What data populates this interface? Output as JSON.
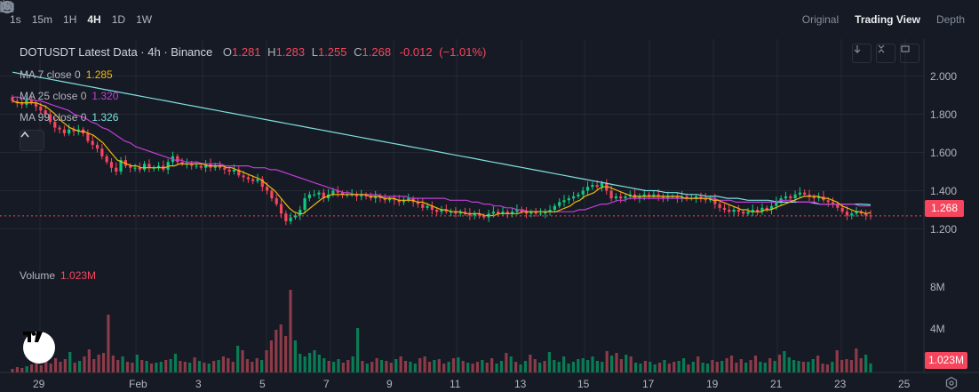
{
  "toolbar": {
    "timeframes": [
      "1s",
      "15m",
      "1H",
      "4H",
      "1D",
      "1W"
    ],
    "active_timeframe": "4H",
    "views": [
      "Original",
      "Trading View",
      "Depth"
    ],
    "active_view": "Trading View"
  },
  "legend": {
    "symbol": "DOTUSDT Latest Data · 4h · Binance",
    "open_label": "O",
    "open": "1.281",
    "high_label": "H",
    "high": "1.283",
    "low_label": "L",
    "low": "1.255",
    "close_label": "C",
    "close": "1.268",
    "change": "-0.012",
    "change_pct": "(−1.01%)"
  },
  "ma": [
    {
      "label": "MA 7 close 0",
      "value": "1.285",
      "color": "#f0b90b"
    },
    {
      "label": "MA 25 close 0",
      "value": "1.320",
      "color": "#c13dd7"
    },
    {
      "label": "MA 99 close 0",
      "value": "1.326",
      "color": "#7ee0e0"
    }
  ],
  "price_axis": {
    "ticks": [
      "2.000",
      "1.800",
      "1.600",
      "1.400",
      "1.200"
    ],
    "last_price": "1.268",
    "last_price_color": "#f6465d"
  },
  "volume": {
    "label": "Volume",
    "value": "1.023M",
    "ticks": [
      "8M",
      "4M"
    ],
    "last_volume": "1.023M"
  },
  "time_axis": {
    "ticks": [
      "29",
      "Feb",
      "3",
      "5",
      "7",
      "9",
      "11",
      "13",
      "15",
      "17",
      "19",
      "21",
      "23",
      "25"
    ]
  },
  "colors": {
    "up": "#0ecb81",
    "down": "#f6465d",
    "background": "#161a25",
    "grid": "#232833"
  },
  "icons": {
    "dropdown": "chevron-down-icon",
    "indicators": "line-chart-icon",
    "candles": "candles-icon",
    "camera": "camera-icon",
    "add": "plus-circle-icon",
    "settings": "hexagon-settings-icon"
  },
  "chart_data": {
    "type": "candlestick",
    "title": "DOTUSDT Latest Data · 4h · Binance",
    "ylim": [
      1.1,
      2.1
    ],
    "closes": [
      1.87,
      1.86,
      1.85,
      1.88,
      1.86,
      1.84,
      1.82,
      1.8,
      1.76,
      1.73,
      1.72,
      1.7,
      1.72,
      1.71,
      1.72,
      1.7,
      1.66,
      1.64,
      1.62,
      1.58,
      1.55,
      1.52,
      1.5,
      1.56,
      1.53,
      1.52,
      1.52,
      1.51,
      1.54,
      1.52,
      1.52,
      1.53,
      1.51,
      1.55,
      1.58,
      1.55,
      1.54,
      1.54,
      1.53,
      1.53,
      1.52,
      1.54,
      1.52,
      1.53,
      1.52,
      1.51,
      1.5,
      1.51,
      1.48,
      1.47,
      1.46,
      1.45,
      1.46,
      1.42,
      1.4,
      1.36,
      1.33,
      1.28,
      1.24,
      1.26,
      1.27,
      1.3,
      1.36,
      1.38,
      1.38,
      1.39,
      1.36,
      1.38,
      1.4,
      1.39,
      1.38,
      1.38,
      1.38,
      1.37,
      1.38,
      1.37,
      1.36,
      1.37,
      1.36,
      1.35,
      1.36,
      1.35,
      1.34,
      1.35,
      1.36,
      1.34,
      1.33,
      1.31,
      1.32,
      1.3,
      1.29,
      1.3,
      1.29,
      1.29,
      1.28,
      1.29,
      1.28,
      1.27,
      1.28,
      1.27,
      1.26,
      1.28,
      1.29,
      1.28,
      1.29,
      1.28,
      1.29,
      1.3,
      1.29,
      1.28,
      1.29,
      1.28,
      1.28,
      1.29,
      1.3,
      1.32,
      1.34,
      1.35,
      1.36,
      1.37,
      1.38,
      1.4,
      1.42,
      1.43,
      1.42,
      1.44,
      1.4,
      1.36,
      1.37,
      1.36,
      1.37,
      1.38,
      1.36,
      1.37,
      1.38,
      1.37,
      1.38,
      1.37,
      1.36,
      1.37,
      1.37,
      1.36,
      1.37,
      1.36,
      1.36,
      1.37,
      1.36,
      1.35,
      1.36,
      1.33,
      1.31,
      1.3,
      1.29,
      1.3,
      1.29,
      1.28,
      1.29,
      1.3,
      1.29,
      1.31,
      1.3,
      1.32,
      1.34,
      1.36,
      1.37,
      1.36,
      1.38,
      1.39,
      1.38,
      1.37,
      1.36,
      1.37,
      1.35,
      1.34,
      1.33,
      1.31,
      1.29,
      1.27,
      1.28,
      1.29,
      1.28,
      1.27,
      1.268
    ],
    "ma7": [
      1.87,
      1.86,
      1.86,
      1.86,
      1.86,
      1.86,
      1.85,
      1.84,
      1.82,
      1.8,
      1.77,
      1.75,
      1.73,
      1.72,
      1.71,
      1.71,
      1.7,
      1.69,
      1.67,
      1.65,
      1.62,
      1.59,
      1.56,
      1.55,
      1.54,
      1.53,
      1.53,
      1.52,
      1.52,
      1.52,
      1.52,
      1.52,
      1.52,
      1.53,
      1.53,
      1.54,
      1.54,
      1.54,
      1.54,
      1.54,
      1.54,
      1.53,
      1.53,
      1.53,
      1.53,
      1.52,
      1.52,
      1.51,
      1.5,
      1.49,
      1.48,
      1.47,
      1.46,
      1.44,
      1.42,
      1.4,
      1.37,
      1.34,
      1.31,
      1.29,
      1.28,
      1.28,
      1.3,
      1.32,
      1.34,
      1.36,
      1.37,
      1.38,
      1.38,
      1.38,
      1.38,
      1.38,
      1.38,
      1.38,
      1.38,
      1.37,
      1.37,
      1.37,
      1.36,
      1.36,
      1.36,
      1.35,
      1.35,
      1.35,
      1.35,
      1.34,
      1.34,
      1.33,
      1.32,
      1.31,
      1.3,
      1.3,
      1.29,
      1.29,
      1.29,
      1.28,
      1.28,
      1.28,
      1.28,
      1.27,
      1.27,
      1.27,
      1.28,
      1.28,
      1.28,
      1.28,
      1.28,
      1.29,
      1.29,
      1.29,
      1.29,
      1.29,
      1.29,
      1.29,
      1.29,
      1.3,
      1.31,
      1.32,
      1.34,
      1.35,
      1.37,
      1.38,
      1.39,
      1.41,
      1.42,
      1.42,
      1.41,
      1.4,
      1.39,
      1.38,
      1.37,
      1.37,
      1.37,
      1.37,
      1.37,
      1.37,
      1.37,
      1.37,
      1.37,
      1.37,
      1.37,
      1.36,
      1.36,
      1.36,
      1.36,
      1.36,
      1.36,
      1.35,
      1.35,
      1.34,
      1.33,
      1.32,
      1.31,
      1.3,
      1.3,
      1.29,
      1.29,
      1.29,
      1.3,
      1.3,
      1.31,
      1.32,
      1.33,
      1.34,
      1.35,
      1.36,
      1.37,
      1.37,
      1.37,
      1.37,
      1.36,
      1.36,
      1.35,
      1.34,
      1.32,
      1.31,
      1.3,
      1.29,
      1.29,
      1.28,
      1.285
    ],
    "ma25": [
      1.89,
      1.89,
      1.88,
      1.88,
      1.87,
      1.87,
      1.86,
      1.85,
      1.84,
      1.83,
      1.82,
      1.8,
      1.79,
      1.78,
      1.76,
      1.75,
      1.73,
      1.72,
      1.7,
      1.68,
      1.66,
      1.65,
      1.63,
      1.62,
      1.61,
      1.6,
      1.59,
      1.58,
      1.57,
      1.56,
      1.56,
      1.55,
      1.55,
      1.55,
      1.54,
      1.54,
      1.54,
      1.54,
      1.53,
      1.53,
      1.53,
      1.53,
      1.53,
      1.52,
      1.52,
      1.52,
      1.51,
      1.51,
      1.5,
      1.49,
      1.48,
      1.47,
      1.46,
      1.45,
      1.44,
      1.43,
      1.42,
      1.41,
      1.4,
      1.39,
      1.39,
      1.38,
      1.38,
      1.38,
      1.38,
      1.38,
      1.37,
      1.37,
      1.37,
      1.37,
      1.37,
      1.36,
      1.36,
      1.36,
      1.36,
      1.36,
      1.36,
      1.36,
      1.35,
      1.35,
      1.35,
      1.35,
      1.34,
      1.34,
      1.33,
      1.33,
      1.32,
      1.32,
      1.31,
      1.31,
      1.3,
      1.3,
      1.29,
      1.29,
      1.29,
      1.29,
      1.29,
      1.29,
      1.29,
      1.29,
      1.29,
      1.3,
      1.3,
      1.31,
      1.32,
      1.33,
      1.33,
      1.34,
      1.35,
      1.35,
      1.36,
      1.36,
      1.36,
      1.36,
      1.36,
      1.36,
      1.36,
      1.36,
      1.36,
      1.36,
      1.36,
      1.36,
      1.36,
      1.36,
      1.36,
      1.36,
      1.35,
      1.35,
      1.35,
      1.34,
      1.34,
      1.34,
      1.34,
      1.34,
      1.34,
      1.34,
      1.34,
      1.35,
      1.35,
      1.35,
      1.34,
      1.34,
      1.34,
      1.34,
      1.33,
      1.33,
      1.33,
      1.33,
      1.33,
      1.33,
      1.33,
      1.32,
      1.32,
      1.32
    ],
    "ma99": [
      2.02,
      2.01,
      2.0,
      1.99,
      1.98,
      1.97,
      1.96,
      1.95,
      1.94,
      1.93,
      1.92,
      1.91,
      1.9,
      1.89,
      1.88,
      1.87,
      1.86,
      1.85,
      1.84,
      1.83,
      1.82,
      1.81,
      1.8,
      1.79,
      1.78,
      1.77,
      1.76,
      1.75,
      1.74,
      1.73,
      1.72,
      1.71,
      1.7,
      1.69,
      1.68,
      1.67,
      1.66,
      1.65,
      1.64,
      1.63,
      1.62,
      1.61,
      1.6,
      1.59,
      1.58,
      1.57,
      1.56,
      1.55,
      1.54,
      1.53,
      1.52,
      1.51,
      1.5,
      1.49,
      1.48,
      1.47,
      1.46,
      1.45,
      1.44,
      1.43,
      1.42,
      1.41,
      1.4,
      1.4,
      1.39,
      1.39,
      1.38,
      1.38,
      1.37,
      1.37,
      1.36,
      1.36,
      1.35,
      1.35,
      1.35,
      1.34,
      1.34,
      1.34,
      1.34,
      1.33,
      1.33,
      1.33,
      1.33,
      1.33,
      1.326
    ],
    "volumes": [
      0.4,
      0.6,
      0.5,
      0.7,
      0.9,
      1.1,
      0.8,
      1.3,
      1.0,
      1.6,
      1.2,
      1.5,
      2.3,
      1.1,
      1.3,
      1.8,
      2.6,
      1.5,
      2.0,
      2.2,
      6.5,
      1.9,
      1.4,
      1.8,
      1.2,
      1.1,
      2.0,
      1.4,
      1.3,
      1.0,
      1.1,
      1.2,
      1.4,
      1.5,
      2.1,
      1.3,
      1.2,
      1.1,
      1.7,
      1.3,
      1.1,
      1.0,
      1.3,
      1.4,
      1.8,
      1.6,
      1.2,
      3.0,
      2.5,
      1.5,
      1.2,
      1.6,
      1.4,
      2.5,
      3.6,
      4.8,
      5.4,
      4.1,
      9.3,
      3.6,
      2.1,
      1.8,
      2.2,
      2.5,
      2.0,
      1.6,
      1.3,
      1.2,
      1.5,
      1.1,
      1.4,
      1.8,
      5.0,
      1.3,
      1.0,
      1.2,
      1.6,
      1.4,
      1.3,
      1.1,
      1.5,
      1.8,
      1.3,
      1.2,
      1.0,
      1.6,
      1.8,
      1.2,
      1.4,
      1.5,
      1.0,
      1.2,
      1.6,
      1.7,
      1.3,
      1.1,
      1.0,
      1.2,
      1.4,
      1.1,
      1.6,
      1.0,
      1.3,
      2.2,
      1.8,
      1.2,
      0.9,
      1.3,
      2.0,
      1.5,
      1.1,
      1.3,
      2.3,
      1.4,
      1.2,
      1.8,
      1.0,
      1.2,
      1.5,
      1.6,
      1.4,
      1.8,
      1.3,
      1.2,
      2.4,
      1.9,
      2.2,
      1.5,
      2.0,
      1.8,
      1.1,
      1.0,
      1.3,
      1.2,
      0.9,
      1.1,
      1.4,
      1.0,
      1.2,
      1.3,
      1.6,
      0.9,
      1.2,
      1.8,
      1.1,
      1.0,
      1.4,
      1.2,
      1.3,
      1.6,
      1.9,
      1.1,
      1.5,
      1.1,
      1.4,
      1.9,
      1.2,
      1.1,
      1.6,
      1.3,
      2.0,
      2.4,
      1.7,
      1.4,
      1.3,
      1.2,
      1.2,
      1.5,
      1.9,
      1.0,
      0.9,
      1.2,
      2.5,
      1.4,
      1.5,
      1.4,
      2.7,
      1.6,
      2.0,
      1.023
    ]
  }
}
